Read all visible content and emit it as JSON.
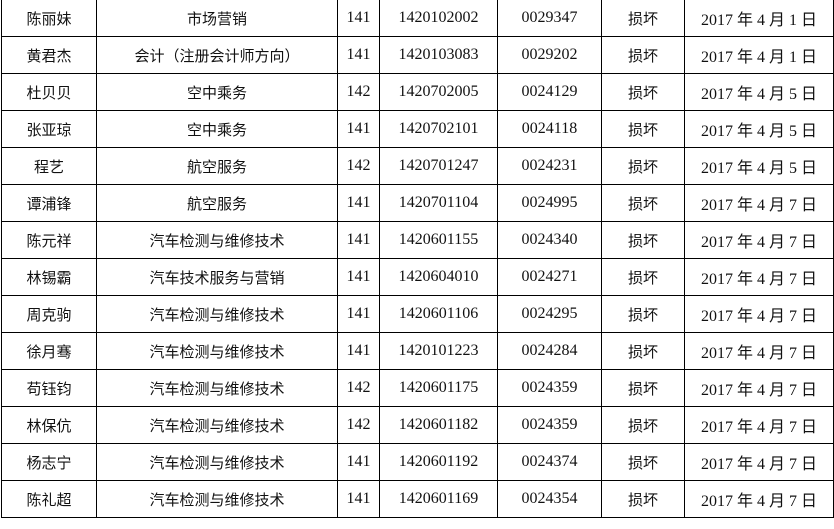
{
  "rows": [
    [
      "陈丽妹",
      "市场营销",
      "141",
      "1420102002",
      "0029347",
      "损坏",
      "2017 年 4 月 1 日"
    ],
    [
      "黄君杰",
      "会计（注册会计师方向）",
      "141",
      "1420103083",
      "0029202",
      "损坏",
      "2017 年 4 月 1 日"
    ],
    [
      "杜贝贝",
      "空中乘务",
      "142",
      "1420702005",
      "0024129",
      "损坏",
      "2017 年 4 月 5 日"
    ],
    [
      "张亚琼",
      "空中乘务",
      "141",
      "1420702101",
      "0024118",
      "损坏",
      "2017 年 4 月 5 日"
    ],
    [
      "程艺",
      "航空服务",
      "142",
      "1420701247",
      "0024231",
      "损坏",
      "2017 年 4 月 5 日"
    ],
    [
      "谭浦锋",
      "航空服务",
      "141",
      "1420701104",
      "0024995",
      "损坏",
      "2017 年 4 月 7 日"
    ],
    [
      "陈元祥",
      "汽车检测与维修技术",
      "141",
      "1420601155",
      "0024340",
      "损坏",
      "2017 年 4 月 7 日"
    ],
    [
      "林锡霸",
      "汽车技术服务与营销",
      "141",
      "1420604010",
      "0024271",
      "损坏",
      "2017 年 4 月 7 日"
    ],
    [
      "周克驹",
      "汽车检测与维修技术",
      "141",
      "1420601106",
      "0024295",
      "损坏",
      "2017 年 4 月 7 日"
    ],
    [
      "徐月骞",
      "汽车检测与维修技术",
      "141",
      "1420101223",
      "0024284",
      "损坏",
      "2017 年 4 月 7 日"
    ],
    [
      "苟钰钧",
      "汽车检测与维修技术",
      "142",
      "1420601175",
      "0024359",
      "损坏",
      "2017 年 4 月 7 日"
    ],
    [
      "林保伉",
      "汽车检测与维修技术",
      "142",
      "1420601182",
      "0024359",
      "损坏",
      "2017 年 4 月 7 日"
    ],
    [
      "杨志宁",
      "汽车检测与维修技术",
      "141",
      "1420601192",
      "0024374",
      "损坏",
      "2017 年 4 月 7 日"
    ],
    [
      "陈礼超",
      "汽车检测与维修技术",
      "141",
      "1420601169",
      "0024354",
      "损坏",
      "2017 年 4 月 7 日"
    ]
  ]
}
